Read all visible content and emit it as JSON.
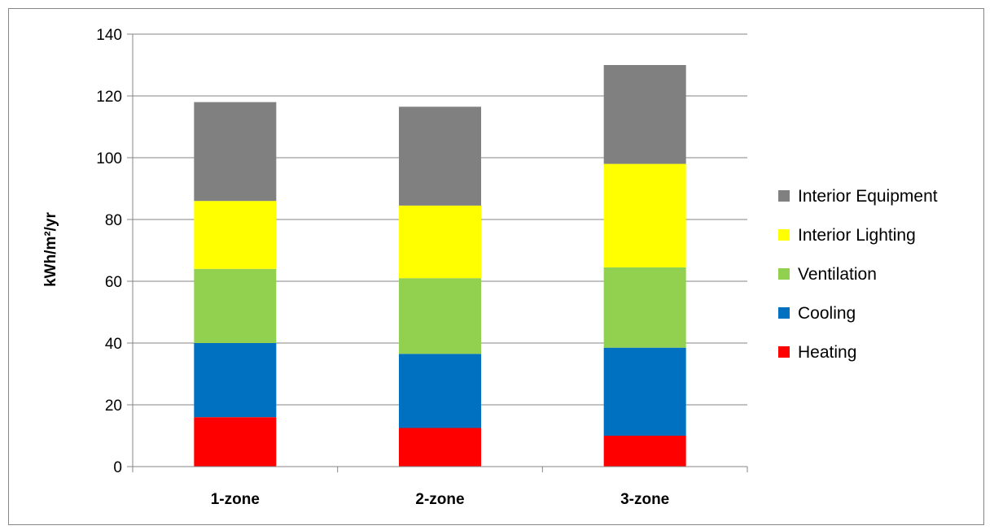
{
  "chart_data": {
    "type": "bar",
    "stacked": true,
    "title": "",
    "xlabel": "",
    "ylabel": "kWh/m²/yr",
    "ylim": [
      0,
      140
    ],
    "yticks": [
      0,
      20,
      40,
      60,
      80,
      100,
      120,
      140
    ],
    "grid": true,
    "legend_position": "right",
    "categories": [
      "1-zone",
      "2-zone",
      "3-zone"
    ],
    "series": [
      {
        "name": "Heating",
        "color": "#ff0000",
        "values": [
          16,
          12.5,
          10
        ]
      },
      {
        "name": "Cooling",
        "color": "#0070c0",
        "values": [
          24,
          24,
          28.5
        ]
      },
      {
        "name": "Ventilation",
        "color": "#92d050",
        "values": [
          24,
          24.5,
          26
        ]
      },
      {
        "name": "Interior Lighting",
        "color": "#ffff00",
        "values": [
          22,
          23.5,
          33.5
        ]
      },
      {
        "name": "Interior Equipment",
        "color": "#808080",
        "values": [
          32,
          32,
          32
        ]
      }
    ]
  }
}
